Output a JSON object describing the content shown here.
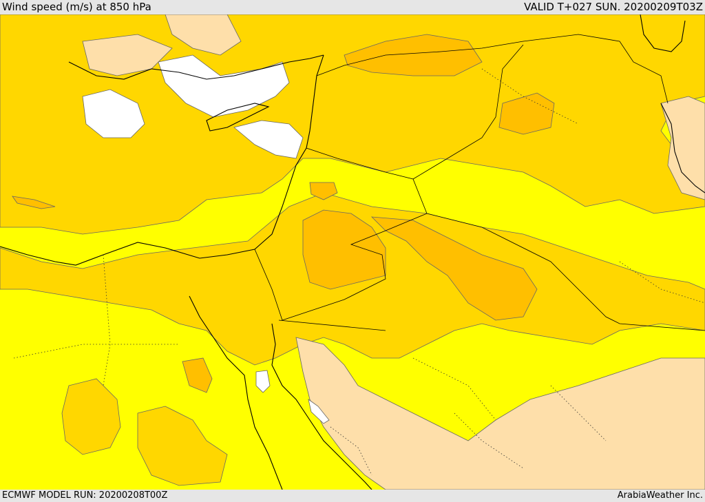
{
  "header": {
    "title": "Wind speed (m/s) at 850 hPa",
    "valid_time": "VALID T+027 SUN. 20200209T03Z"
  },
  "footer": {
    "model_run": "ECMWF MODEL RUN: 20200208T00Z",
    "credit": "ArabiaWeather Inc."
  },
  "map": {
    "field": "wind speed at 850 hPa",
    "colors": {
      "calm": "#ffffff",
      "light": "#ffffff",
      "low": "#ffffff",
      "band1": "#ffff00",
      "band2": "#ffd700",
      "band3": "#ffbf00",
      "band4": "#ffae00",
      "pale": "#fedfaa",
      "coast": "#000000",
      "contour": "#555555"
    }
  }
}
